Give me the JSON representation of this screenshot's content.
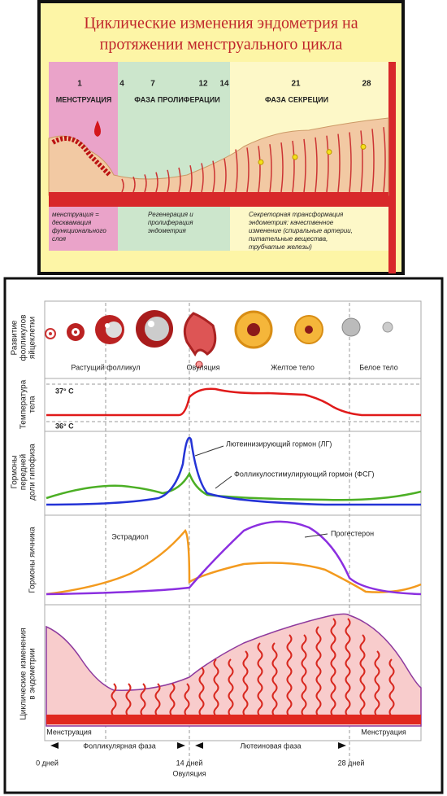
{
  "top": {
    "title": [
      "Циклические изменения эндометрия на",
      "протяжении менструального цикла"
    ],
    "days": [
      "1",
      "4",
      "7",
      "12",
      "14",
      "21",
      "28"
    ],
    "phases": [
      "МЕНСТРУАЦИЯ",
      "ФАЗА ПРОЛИФЕРАЦИИ",
      "ФАЗА СЕКРЕЦИИ"
    ],
    "notes": [
      [
        "менструация =",
        "десквамация",
        "функционального",
        "слоя"
      ],
      [
        "Регенерация и",
        "пролиферация",
        "эндометрия"
      ],
      [
        "Секреторная трансформация",
        "эндометрия: качественное",
        "изменение (спиральные артерии,",
        "питательные вещества,",
        "трубчатые железы)"
      ]
    ]
  },
  "bottom": {
    "row_labels": [
      [
        "Развитие",
        "фолликулов",
        "яйцеклетки"
      ],
      [
        "Температура",
        "тела"
      ],
      [
        "Гормоны",
        "передней",
        "доли гипофиза"
      ],
      [
        "Гормоны яичника"
      ],
      [
        "Циклические изменения",
        "в эндометрии"
      ]
    ],
    "follicle_stages": [
      "Растущий фолликул",
      "Овуляция",
      "Желтое тело",
      "Белое тело"
    ],
    "temperature": [
      "37° C",
      "36° C"
    ],
    "hormones": [
      "Лютеинизирующий гормон (ЛГ)",
      "Фолликулостимулирующий гормон (ФСГ)",
      "Эстрадиол",
      "Прогестерон"
    ],
    "endometrium": [
      "Менструация",
      "Менструация"
    ],
    "phases": [
      "Фолликулярная фаза",
      "Лютеиновая фаза"
    ],
    "days": [
      "0 дней",
      "14 дней",
      "28 дней"
    ],
    "ovulation": "Овуляция"
  }
}
